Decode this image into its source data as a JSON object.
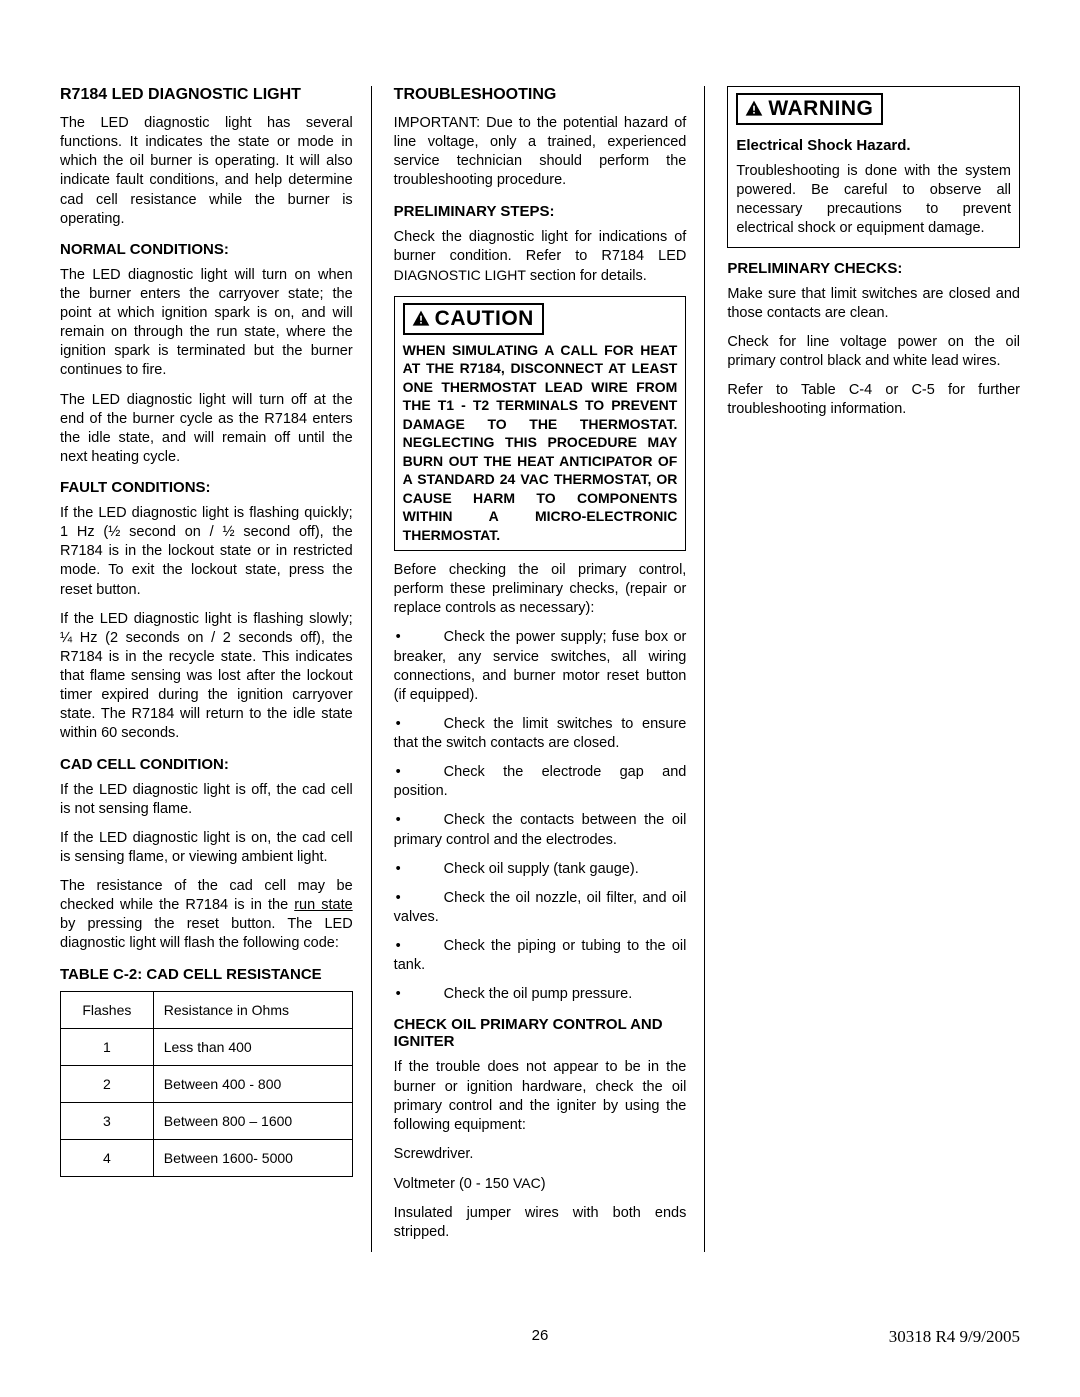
{
  "col1": {
    "h1": "R7184 LED DIAGNOSTIC LIGHT",
    "p1": "The LED diagnostic light has several functions. It indicates the state or mode in which the oil burner is operating. It will also indicate fault conditions, and help determine cad cell resistance while the burner is operating.",
    "h2a": "NORMAL CONDITIONS",
    "p2": "The LED diagnostic light will turn on when the burner enters the carryover state; the point at which ignition spark is on, and will remain on through the run state, where the ignition spark is terminated but the burner continues to fire.",
    "p3": "The LED diagnostic light will turn off at the end of the burner cycle as the R7184 enters the idle state, and will remain off until the next heating cycle.",
    "h2b": "FAULT CONDITIONS:",
    "p4": "If the LED diagnostic light is flashing quickly; 1 Hz (½ second on / ½ second off), the R7184 is in the lockout state or in restricted mode. To exit the lockout state, press the reset button.",
    "p5": "If the LED diagnostic light is flashing slowly; ¼ Hz (2 seconds on / 2 seconds off), the R7184 is in the recycle state. This indicates that flame sensing was lost after the lockout timer expired during the ignition carryover state. The R7184 will return to the idle state within 60 seconds.",
    "h2c": "CAD CELL CONDITION",
    "p6": "If the LED diagnostic light is off, the cad cell is not sensing flame.",
    "p7": "If the LED diagnostic light is on, the cad cell is sensing flame, or viewing ambient light.",
    "p8a": "The resistance of the cad cell may be checked while the R7184 is in the ",
    "p8_u": "run state",
    "p8b": " by pressing the reset button. The LED diagnostic light will flash the following code:",
    "tableTitle": "TABLE C-2: CAD CELL RESISTANCE",
    "tableHeaders": [
      "Flashes",
      "Resistance in Ohms"
    ],
    "tableRows": [
      [
        "1",
        "Less than 400"
      ],
      [
        "2",
        "Between 400 - 800"
      ],
      [
        "3",
        "Between 800 – 1600"
      ],
      [
        "4",
        "Between 1600- 5000"
      ]
    ]
  },
  "col2": {
    "h1": "TROUBLESHOOTING",
    "p1": "IMPORTANT: Due to the potential hazard of line voltage, only a trained, experienced service technician should perform the troubleshooting procedure.",
    "h2a": "PRELIMINARY STEPS:",
    "p2a": "Check the diagnostic light for indications of burner condition. Refer to R7184 LED ",
    "p2sc": "DIAGNOSTIC LIGHT",
    "p2b": " section for details.",
    "cautionLabel": "CAUTION",
    "cautionText": "WHEN SIMULATING A CALL FOR HEAT AT THE R7184, DISCONNECT AT LEAST ONE THERMOSTAT LEAD WIRE FROM THE T1 - T2 TERMINALS TO PREVENT DAMAGE TO THE THERMOSTAT. NEGLECTING THIS PROCEDURE MAY BURN OUT THE HEAT ANTICIPATOR OF A STANDARD 24 VAC THERMOSTAT, OR CAUSE HARM TO COMPONENTS WITHIN A MICRO-ELECTRONIC THERMOSTAT.",
    "p3": "Before checking the oil primary control, perform these preliminary checks, (repair or replace controls as necessary):",
    "bullets": [
      "Check the power supply; fuse box or breaker, any service switches, all wiring connections, and burner motor reset button (if equipped).",
      "Check the limit switches to ensure that the switch contacts are closed.",
      "Check the electrode gap and position.",
      "Check the contacts between the oil primary control and the electrodes.",
      "Check oil supply (tank gauge).",
      "Check the oil nozzle, oil filter, and oil valves.",
      "Check the piping or tubing to the oil tank.",
      "Check the oil pump pressure."
    ],
    "h2b": "CHECK OIL PRIMARY CONTROL AND IGNITER",
    "p4": "If the trouble does not appear to be in the burner or ignition hardware, check the oil primary control and the igniter by using the following equipment:",
    "p5": "Screwdriver.",
    "p6a": "Voltmeter (0 - 150 ",
    "p6sc": "VAC",
    "p6b": ")",
    "p7": "Insulated jumper wires with both ends stripped."
  },
  "col3": {
    "warningLabel": "WARNING",
    "warnH": "Electrical Shock Hazard",
    "warnP": "Troubleshooting is done with the system powered. Be careful to observe all necessary precautions to prevent electrical shock or equipment damage.",
    "h2a": "PRELIMINARY CHECKS",
    "p1": "Make sure that limit switches are closed and those contacts are clean.",
    "p2": "Check for line voltage power on the oil primary control black and white lead wires.",
    "p3": "Refer to Table C-4 or C-5 for further troubleshooting information."
  },
  "footer": {
    "page": "26",
    "rev": "30318 R4 9/9/2005"
  }
}
